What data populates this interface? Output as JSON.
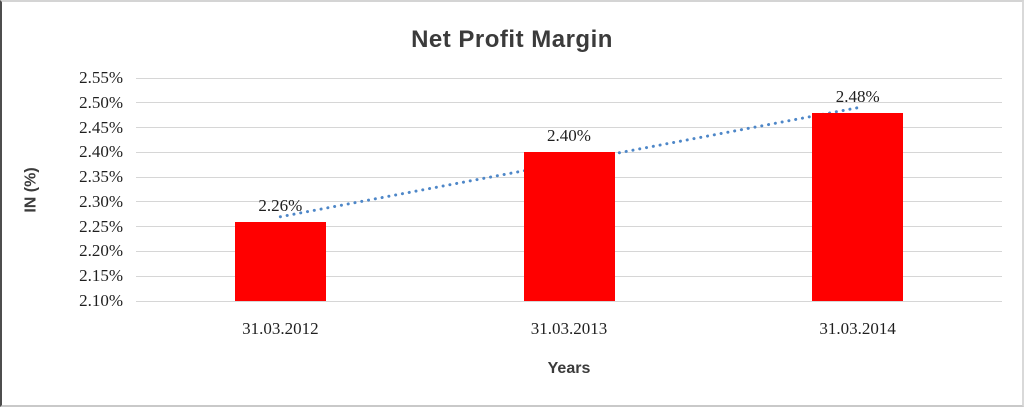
{
  "chart_data": {
    "type": "bar",
    "title": "Net Profit Margin",
    "categories": [
      "31.03.2012",
      "31.03.2013",
      "31.03.2014"
    ],
    "values": [
      2.26,
      2.4,
      2.48
    ],
    "data_labels": [
      "2.26%",
      "2.40%",
      "2.48%"
    ],
    "xlabel": "Years",
    "ylabel": "IN (%)",
    "ylim": [
      2.1,
      2.55
    ],
    "ytick_step": 0.05,
    "ytick_labels": [
      "2.55%",
      "2.50%",
      "2.45%",
      "2.40%",
      "2.35%",
      "2.30%",
      "2.25%",
      "2.20%",
      "2.15%",
      "2.10%"
    ],
    "grid": true,
    "legend": "none",
    "bar_color": "#FF0000",
    "gridline_color": "#D6D6D6",
    "title_color": "#3B3B3B",
    "tick_label_color": "#1F1F1F",
    "trendline": {
      "type": "linear",
      "style": "dotted",
      "color": "#4E87C8"
    }
  }
}
